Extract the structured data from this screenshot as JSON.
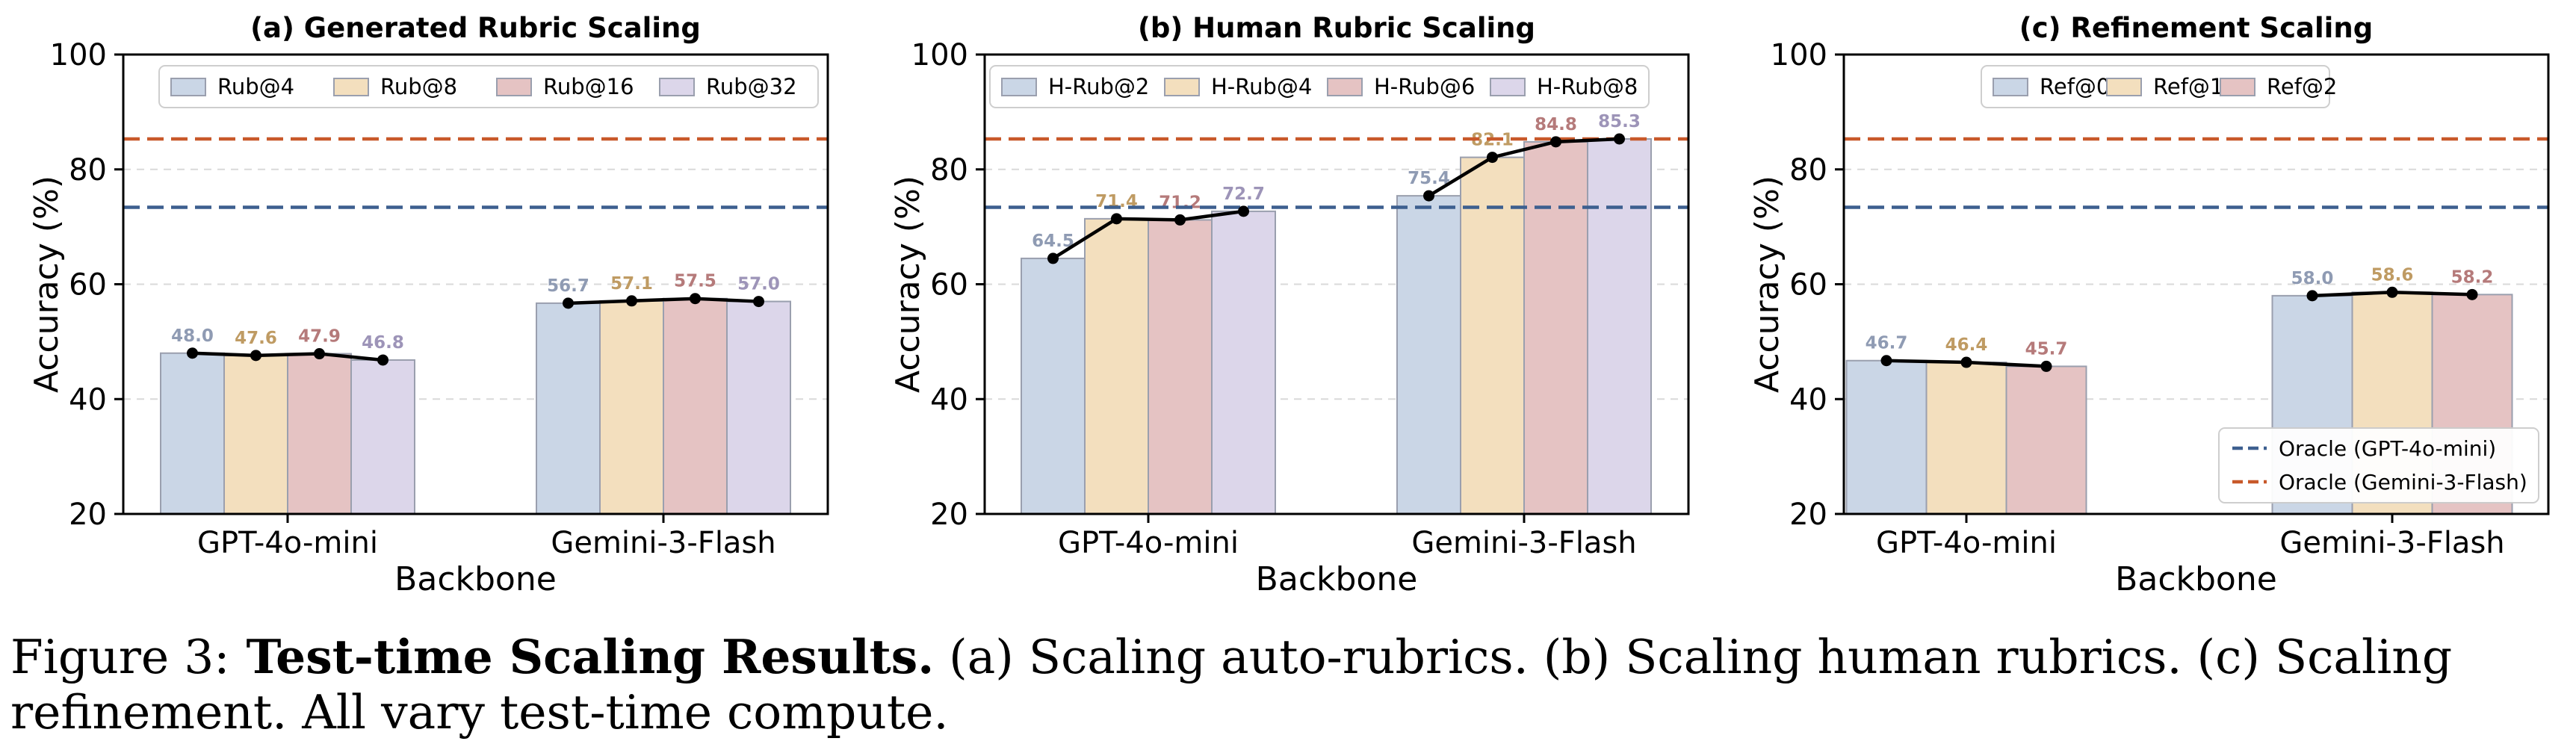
{
  "colors": {
    "oracle_gpt": "#3d5f8f",
    "oracle_gemini": "#c8592a",
    "value_labels": [
      "#8f9bb3",
      "#bf9b63",
      "#b57a7a",
      "#9d94b8"
    ],
    "line": "#000000"
  },
  "chart_data": [
    {
      "type": "bar",
      "title": "(a) Generated Rubric Scaling",
      "xlabel": "Backbone",
      "ylabel": "Accuracy (%)",
      "ylim": [
        20,
        100
      ],
      "yticks": [
        "20",
        "40",
        "60",
        "80",
        "100"
      ],
      "categories": [
        "GPT-4o-mini",
        "Gemini-3-Flash"
      ],
      "legend_position": "top",
      "series": [
        {
          "name": "Rub@4",
          "color": "#cad6e6",
          "values": [
            48.0,
            56.7
          ],
          "labels": [
            "48.0",
            "56.7"
          ]
        },
        {
          "name": "Rub@8",
          "color": "#f3dfbe",
          "values": [
            47.6,
            57.1
          ],
          "labels": [
            "47.6",
            "57.1"
          ]
        },
        {
          "name": "Rub@16",
          "color": "#e5c3c3",
          "values": [
            47.9,
            57.5
          ],
          "labels": [
            "47.9",
            "57.5"
          ]
        },
        {
          "name": "Rub@32",
          "color": "#dcd6ea",
          "values": [
            46.8,
            57.0
          ],
          "labels": [
            "46.8",
            "57.0"
          ]
        }
      ],
      "oracle_lines": [
        73.4,
        85.3
      ]
    },
    {
      "type": "bar",
      "title": "(b) Human Rubric Scaling",
      "xlabel": "Backbone",
      "ylabel": "Accuracy (%)",
      "ylim": [
        20,
        100
      ],
      "yticks": [
        "20",
        "40",
        "60",
        "80",
        "100"
      ],
      "categories": [
        "GPT-4o-mini",
        "Gemini-3-Flash"
      ],
      "legend_position": "top",
      "series": [
        {
          "name": "H-Rub@2",
          "color": "#cad6e6",
          "values": [
            64.5,
            75.4
          ],
          "labels": [
            "64.5",
            "75.4"
          ]
        },
        {
          "name": "H-Rub@4",
          "color": "#f3dfbe",
          "values": [
            71.4,
            82.1
          ],
          "labels": [
            "71.4",
            "82.1"
          ]
        },
        {
          "name": "H-Rub@6",
          "color": "#e5c3c3",
          "values": [
            71.2,
            84.8
          ],
          "labels": [
            "71.2",
            "84.8"
          ]
        },
        {
          "name": "H-Rub@8",
          "color": "#dcd6ea",
          "values": [
            72.7,
            85.3
          ],
          "labels": [
            "72.7",
            "85.3"
          ]
        }
      ],
      "oracle_lines": [
        73.4,
        85.3
      ]
    },
    {
      "type": "bar",
      "title": "(c) Refinement Scaling",
      "xlabel": "Backbone",
      "ylabel": "Accuracy (%)",
      "ylim": [
        20,
        100
      ],
      "yticks": [
        "20",
        "40",
        "60",
        "80",
        "100"
      ],
      "categories": [
        "GPT-4o-mini",
        "Gemini-3-Flash"
      ],
      "legend_position": "top",
      "series": [
        {
          "name": "Ref@0",
          "color": "#cad6e6",
          "values": [
            46.7,
            58.0
          ],
          "labels": [
            "46.7",
            "58.0"
          ]
        },
        {
          "name": "Ref@1",
          "color": "#f3dfbe",
          "values": [
            46.4,
            58.6
          ],
          "labels": [
            "46.4",
            "58.6"
          ]
        },
        {
          "name": "Ref@2",
          "color": "#e5c3c3",
          "values": [
            45.7,
            58.2
          ],
          "labels": [
            "45.7",
            "58.2"
          ]
        }
      ],
      "oracle_lines": [
        73.4,
        85.3
      ],
      "oracle_legend": [
        "Oracle (GPT-4o-mini)",
        "Oracle (Gemini-3-Flash)"
      ],
      "oracle_legend_position": "lower-right"
    }
  ],
  "caption": {
    "number": "Figure 3:",
    "bold": "Test-time Scaling Results.",
    "text": " (a) Scaling auto-rubrics. (b) Scaling human rubrics. (c) Scaling refinement. All vary test-time compute."
  }
}
